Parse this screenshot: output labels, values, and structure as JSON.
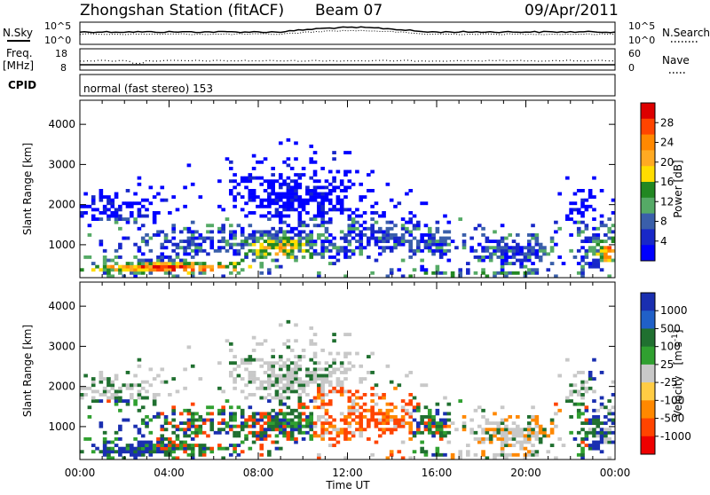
{
  "header": {
    "station": "Zhongshan Station (fitACF)",
    "beam": "Beam 07",
    "date": "09/Apr/2011"
  },
  "noise_panel": {
    "left_label": "N.Sky",
    "left_ticks": [
      "10^5",
      "10^0"
    ],
    "right_label": "N.Search",
    "right_ticks": [
      "10^5",
      "10^0"
    ]
  },
  "freq_panel": {
    "left_label_1": "Freq.",
    "left_label_2": "[MHz]",
    "left_ticks": [
      "18",
      "8"
    ],
    "right_label": "Nave",
    "right_ticks": [
      "60",
      "0"
    ]
  },
  "cpid": {
    "label": "CPID",
    "text": "normal (fast stereo) 153"
  },
  "chart_data": [
    {
      "type": "heatmap",
      "quantity": "Power",
      "xlabel": "Time UT",
      "ylabel": "Slant Range [km]",
      "xlim": [
        "00:00",
        "00:00"
      ],
      "x_ticks": [
        "00:00",
        "04:00",
        "08:00",
        "12:00",
        "16:00",
        "20:00",
        "00:00"
      ],
      "ylim": [
        180,
        4600
      ],
      "y_ticks": [
        1000,
        2000,
        3000,
        4000
      ],
      "colorbar": {
        "label": "Power [dB]",
        "ticks": [
          "28",
          "24",
          "20",
          "16",
          "12",
          "8",
          "4"
        ],
        "colors": [
          "#dd0000",
          "#ff4400",
          "#ff8800",
          "#ffaa22",
          "#ffdd00",
          "#228822",
          "#55aa66",
          "#3a5faa",
          "#1828c8",
          "#0000ff"
        ]
      }
    },
    {
      "type": "heatmap",
      "quantity": "Velocity",
      "xlabel": "Time UT",
      "ylabel": "Slant Range [km]",
      "xlim": [
        "00:00",
        "00:00"
      ],
      "x_ticks": [
        "00:00",
        "04:00",
        "08:00",
        "12:00",
        "16:00",
        "20:00",
        "00:00"
      ],
      "ylim": [
        180,
        4600
      ],
      "y_ticks": [
        1000,
        2000,
        3000,
        4000
      ],
      "colorbar": {
        "label_main": "Velocity",
        "label_unit": "[m s",
        "label_exp": "-1",
        "label_close": "]",
        "ticks": [
          "1000",
          "500",
          "100",
          "25",
          "-25",
          "-100",
          "-500",
          "-1000"
        ],
        "colors": [
          "#1a2fb0",
          "#2060c8",
          "#207030",
          "#30a030",
          "#c8c8c8",
          "#ffcc44",
          "#ff8800",
          "#ff4400",
          "#ee0000"
        ]
      }
    }
  ],
  "xaxis_label": "Time UT"
}
